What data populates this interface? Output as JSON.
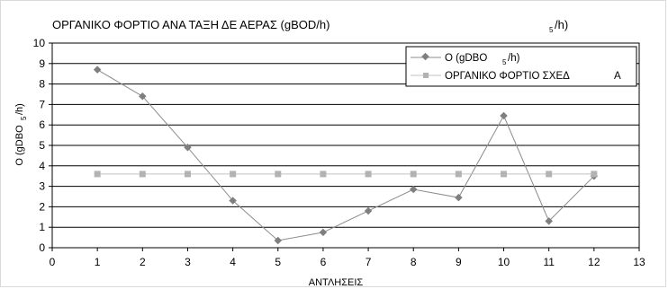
{
  "chart_data": {
    "type": "line",
    "title": "ΟΡΓΑΝΙΚΟ ΦΟΡΤΙΟ ΑΝΑ ΤΑΞΗ ΔΕ ΑΕΡΑΣ (gBΟD/h)",
    "title_subscript": "5",
    "title_suffix": "/h)",
    "xlabel": "ΑΝΤΛΗΣΕΙΣ",
    "ylabel": "Ο (gDBO",
    "ylabel_subscript": "5",
    "ylabel_suffix": "/h)",
    "xlim": [
      0,
      13
    ],
    "ylim": [
      0,
      10
    ],
    "xticks": [
      0,
      1,
      2,
      3,
      4,
      5,
      6,
      7,
      8,
      9,
      10,
      11,
      12,
      13
    ],
    "yticks": [
      0,
      1,
      2,
      3,
      4,
      5,
      6,
      7,
      8,
      9,
      10
    ],
    "grid": "horizontal",
    "legend_position": "top-right",
    "series": [
      {
        "name": "O (gDBO",
        "name_subscript": "5",
        "name_suffix": "/h)",
        "marker": "diamond",
        "color": "#7f7f7f",
        "line_color": "#8c8c8c",
        "x": [
          1,
          2,
          3,
          4,
          5,
          6,
          7,
          8,
          9,
          10,
          11,
          12
        ],
        "values": [
          8.7,
          7.4,
          4.9,
          2.3,
          0.35,
          0.75,
          1.8,
          2.85,
          2.45,
          6.45,
          1.3,
          3.5
        ]
      },
      {
        "name": "ΟΡΓΑΝΙΚΟ ΦΟΡΤΙΟ ΣΧΕΔ",
        "name_suffix": "A",
        "marker": "square",
        "color": "#b3b3b3",
        "line_color": "#c0c0c0",
        "x": [
          1,
          2,
          3,
          4,
          5,
          6,
          7,
          8,
          9,
          10,
          11,
          12
        ],
        "values": [
          3.6,
          3.6,
          3.6,
          3.6,
          3.6,
          3.6,
          3.6,
          3.6,
          3.6,
          3.6,
          3.6,
          3.6
        ]
      }
    ]
  }
}
